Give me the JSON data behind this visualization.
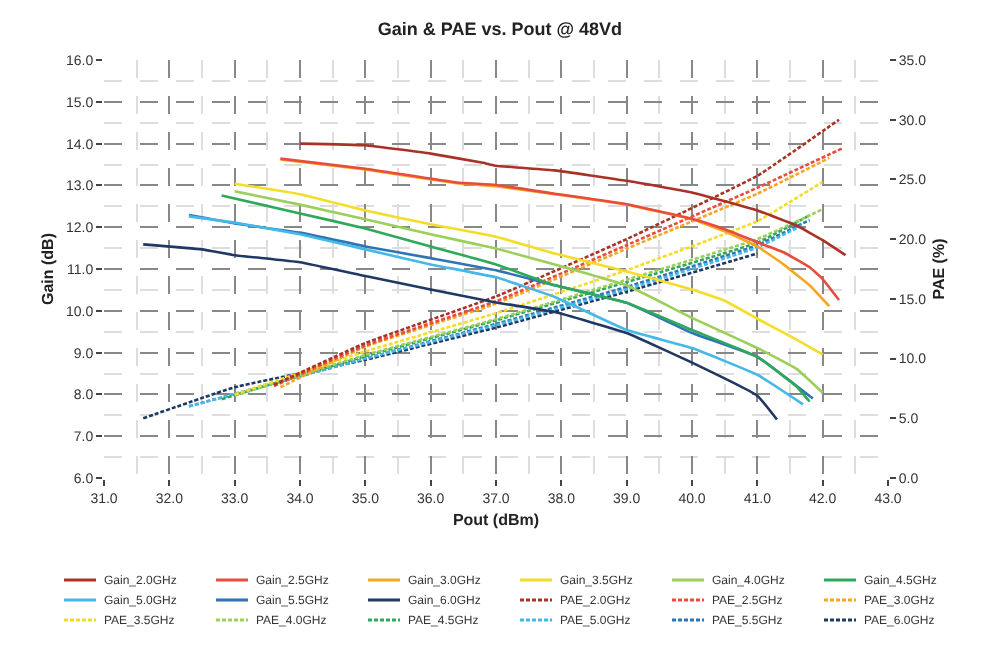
{
  "chart_data": {
    "type": "line",
    "title": "Gain & PAE vs. Pout @ 48Vd",
    "xlabel": "Pout (dBm)",
    "ylabel": "Gain (dB)",
    "y2label": "PAE (%)",
    "xlim": [
      31,
      43
    ],
    "xticks": [
      {
        "value": 31,
        "label": "31.0"
      },
      {
        "value": 32,
        "label": "32.0"
      },
      {
        "value": 33,
        "label": "33.0"
      },
      {
        "value": 34,
        "label": "34.0"
      },
      {
        "value": 35,
        "label": "35.0"
      },
      {
        "value": 36,
        "label": "36.0"
      },
      {
        "value": 37,
        "label": "37.0"
      },
      {
        "value": 38,
        "label": "38.0"
      },
      {
        "value": 39,
        "label": "39.0"
      },
      {
        "value": 40,
        "label": "40.0"
      },
      {
        "value": 41,
        "label": "41.0"
      },
      {
        "value": 42,
        "label": "42.0"
      },
      {
        "value": 43,
        "label": "43.0"
      }
    ],
    "ylim": [
      6,
      16
    ],
    "yticks": [
      {
        "value": 6,
        "label": "6.0"
      },
      {
        "value": 7,
        "label": "7.0"
      },
      {
        "value": 8,
        "label": "8.0"
      },
      {
        "value": 9,
        "label": "9.0"
      },
      {
        "value": 10,
        "label": "10.0"
      },
      {
        "value": 11,
        "label": "11.0"
      },
      {
        "value": 12,
        "label": "12.0"
      },
      {
        "value": 13,
        "label": "13.0"
      },
      {
        "value": 14,
        "label": "14.0"
      },
      {
        "value": 15,
        "label": "15.0"
      },
      {
        "value": 16,
        "label": "16.0"
      }
    ],
    "y2lim": [
      0,
      35
    ],
    "y2ticks": [
      {
        "value": 0,
        "label": "0.0"
      },
      {
        "value": 5,
        "label": "5.0"
      },
      {
        "value": 10,
        "label": "10.0"
      },
      {
        "value": 15,
        "label": "15.0"
      },
      {
        "value": 20,
        "label": "20.0"
      },
      {
        "value": 25,
        "label": "25.0"
      },
      {
        "value": 30,
        "label": "30.0"
      },
      {
        "value": 35,
        "label": "35.0"
      }
    ],
    "grid": true,
    "legend": "bottom",
    "marker": "none",
    "line_style": "solid",
    "series": [
      {
        "name": "Gain_2.0GHz",
        "color": "#a93226",
        "x": [
          34.0,
          35.0,
          36.0,
          36.8,
          37.0,
          37.9,
          39.0,
          40.0,
          41.0,
          41.6,
          42.0,
          42.35
        ],
        "values": [
          14.0,
          13.96,
          13.76,
          13.54,
          13.47,
          13.36,
          13.11,
          12.83,
          12.4,
          12.04,
          11.69,
          11.33
        ]
      },
      {
        "name": "Gain_2.5GHz",
        "color": "#e74c3c",
        "x": [
          33.7,
          35.0,
          36.4,
          37.0,
          37.9,
          39.0,
          40.0,
          40.5,
          41.0,
          41.4,
          41.8,
          42.0,
          42.25
        ],
        "values": [
          13.64,
          13.4,
          13.07,
          13.01,
          12.8,
          12.55,
          12.2,
          11.95,
          11.64,
          11.4,
          11.04,
          10.76,
          10.26
        ]
      },
      {
        "name": "Gain_3.0GHz",
        "color": "#f5a623",
        "x": [
          33.7,
          35.0,
          36.4,
          37.0,
          37.9,
          39.0,
          40.0,
          40.5,
          41.0,
          41.4,
          41.8,
          42.1
        ],
        "values": [
          13.62,
          13.38,
          13.05,
          12.98,
          12.79,
          12.54,
          12.19,
          11.9,
          11.54,
          11.11,
          10.61,
          10.11
        ]
      },
      {
        "name": "Gain_3.5GHz",
        "color": "#f4dc2a",
        "x": [
          33.0,
          34.0,
          35.0,
          36.0,
          37.0,
          37.9,
          39.0,
          40.0,
          40.5,
          41.0,
          41.6,
          42.0
        ],
        "values": [
          13.04,
          12.79,
          12.4,
          12.07,
          11.77,
          11.37,
          10.94,
          10.51,
          10.24,
          9.81,
          9.31,
          8.96
        ]
      },
      {
        "name": "Gain_4.0GHz",
        "color": "#9bcf5a",
        "x": [
          33.0,
          34.0,
          35.0,
          36.0,
          37.0,
          37.9,
          39.0,
          40.0,
          41.0,
          41.6,
          42.0
        ],
        "values": [
          12.86,
          12.54,
          12.19,
          11.83,
          11.49,
          11.11,
          10.61,
          9.83,
          9.11,
          8.61,
          8.04
        ]
      },
      {
        "name": "Gain_4.5GHz",
        "color": "#2ea85a",
        "x": [
          32.8,
          34.0,
          35.0,
          36.0,
          37.0,
          37.9,
          39.0,
          40.0,
          41.0,
          41.6,
          41.8
        ],
        "values": [
          12.76,
          12.33,
          11.97,
          11.54,
          11.11,
          10.61,
          10.19,
          9.54,
          8.9,
          8.19,
          7.83
        ]
      },
      {
        "name": "Gain_5.0GHz",
        "color": "#45b8e8",
        "x": [
          32.3,
          33.0,
          34.0,
          35.0,
          36.0,
          37.0,
          37.9,
          39.0,
          40.0,
          41.0,
          41.7
        ],
        "values": [
          12.26,
          12.11,
          11.83,
          11.47,
          11.11,
          10.8,
          10.33,
          9.54,
          9.11,
          8.47,
          7.76
        ]
      },
      {
        "name": "Gain_5.5GHz",
        "color": "#2f75b5",
        "x": [
          32.3,
          33.0,
          34.0,
          35.0,
          36.0,
          37.0,
          37.9,
          39.0,
          40.0,
          41.0,
          41.85
        ],
        "values": [
          12.29,
          12.09,
          11.87,
          11.54,
          11.26,
          10.97,
          10.61,
          10.19,
          9.47,
          8.9,
          7.9
        ]
      },
      {
        "name": "Gain_6.0GHz",
        "color": "#1f3864",
        "x": [
          31.6,
          32.5,
          33.0,
          34.0,
          35.0,
          36.0,
          37.0,
          37.9,
          39.0,
          40.0,
          41.0,
          41.3
        ],
        "values": [
          11.59,
          11.47,
          11.33,
          11.16,
          10.83,
          10.51,
          10.2,
          9.97,
          9.47,
          8.76,
          7.97,
          7.4
        ]
      },
      {
        "name": "PAE_2.0GHz",
        "color": "#a93226",
        "axis": "y2",
        "line_style": "dashed",
        "x": [
          33.6,
          35.0,
          37.0,
          39.0,
          41.0,
          42.25
        ],
        "values": [
          7.8,
          11.3,
          15.2,
          20.0,
          25.3,
          30.0
        ]
      },
      {
        "name": "PAE_2.5GHz",
        "color": "#e74c3c",
        "axis": "y2",
        "line_style": "dashed",
        "x": [
          33.6,
          35.0,
          37.0,
          39.0,
          41.0,
          42.3
        ],
        "values": [
          7.7,
          11.1,
          14.8,
          19.5,
          24.3,
          27.6
        ]
      },
      {
        "name": "PAE_3.0GHz",
        "color": "#f5a623",
        "axis": "y2",
        "line_style": "dashed",
        "x": [
          33.7,
          35.0,
          37.0,
          39.0,
          41.0,
          42.1
        ],
        "values": [
          7.6,
          11.0,
          14.6,
          19.2,
          23.8,
          26.8
        ]
      },
      {
        "name": "PAE_3.5GHz",
        "color": "#f4dc2a",
        "axis": "y2",
        "line_style": "dashed",
        "x": [
          33.0,
          35.0,
          37.0,
          39.0,
          41.0,
          42.0
        ],
        "values": [
          7.0,
          10.6,
          13.8,
          17.4,
          21.5,
          24.8
        ]
      },
      {
        "name": "PAE_4.0GHz",
        "color": "#9bcf5a",
        "axis": "y2",
        "line_style": "dashed",
        "x": [
          33.0,
          35.0,
          37.0,
          39.0,
          41.0,
          42.0
        ],
        "values": [
          6.9,
          10.3,
          13.3,
          16.6,
          20.0,
          22.5
        ]
      },
      {
        "name": "PAE_4.5GHz",
        "color": "#2ea85a",
        "axis": "y2",
        "line_style": "dashed",
        "x": [
          32.8,
          35.0,
          37.0,
          39.0,
          41.0,
          41.8
        ],
        "values": [
          6.6,
          10.2,
          13.2,
          16.4,
          19.7,
          22.0
        ]
      },
      {
        "name": "PAE_5.0GHz",
        "color": "#45b8e8",
        "axis": "y2",
        "line_style": "dashed",
        "x": [
          32.3,
          35.0,
          37.0,
          39.0,
          41.0,
          41.7
        ],
        "values": [
          6.0,
          10.0,
          12.8,
          15.8,
          19.3,
          21.2
        ]
      },
      {
        "name": "PAE_5.5GHz",
        "color": "#2f75b5",
        "axis": "y2",
        "line_style": "dashed",
        "x": [
          32.3,
          35.0,
          37.0,
          39.0,
          41.0,
          41.8
        ],
        "values": [
          6.0,
          10.0,
          12.9,
          16.0,
          19.5,
          21.6
        ]
      },
      {
        "name": "PAE_6.0GHz",
        "color": "#1f3864",
        "axis": "y2",
        "line_style": "dashed",
        "x": [
          31.6,
          33.0,
          35.0,
          37.0,
          39.0,
          41.0
        ],
        "values": [
          5.0,
          7.6,
          9.9,
          12.6,
          15.6,
          18.8
        ]
      }
    ]
  }
}
